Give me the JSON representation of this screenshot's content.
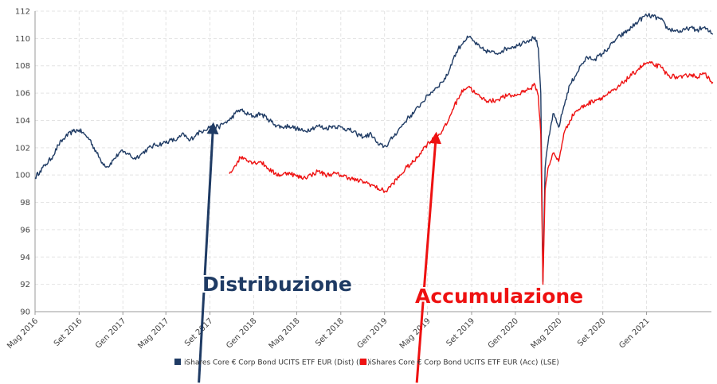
{
  "chart_data": {
    "type": "line",
    "ylim": [
      90,
      112
    ],
    "y_ticks": [
      90,
      92,
      94,
      96,
      98,
      100,
      102,
      104,
      106,
      108,
      110,
      112
    ],
    "x_ticks": [
      "Mag 2016",
      "Set 2016",
      "Gen 2017",
      "Mag 2017",
      "Set 2017",
      "Gen 2018",
      "Mag 2018",
      "Set 2018",
      "Gen 2019",
      "Mag 2019",
      "Set 2019",
      "Gen 2020",
      "Mag 2020",
      "Set 2020",
      "Gen 2021"
    ],
    "x_start": "2016-05",
    "x_end": "2021-07",
    "grid": true,
    "legend_position": "bottom",
    "series": [
      {
        "name": "iShares Core € Corp Bond UCITS ETF EUR (Dist) (MI)",
        "color": "#1f3b64",
        "points": [
          [
            "2016-05-01",
            99.8
          ],
          [
            "2016-05-15",
            100.3
          ],
          [
            "2016-06-01",
            100.8
          ],
          [
            "2016-06-20",
            101.4
          ],
          [
            "2016-07-05",
            102.2
          ],
          [
            "2016-07-25",
            102.8
          ],
          [
            "2016-08-15",
            103.2
          ],
          [
            "2016-09-01",
            103.3
          ],
          [
            "2016-09-15",
            103.0
          ],
          [
            "2016-10-01",
            102.6
          ],
          [
            "2016-10-20",
            101.6
          ],
          [
            "2016-11-05",
            100.9
          ],
          [
            "2016-11-20",
            100.6
          ],
          [
            "2016-12-05",
            101.1
          ],
          [
            "2016-12-25",
            101.7
          ],
          [
            "2017-01-15",
            101.6
          ],
          [
            "2017-02-01",
            101.2
          ],
          [
            "2017-02-20",
            101.5
          ],
          [
            "2017-03-10",
            101.9
          ],
          [
            "2017-04-01",
            102.2
          ],
          [
            "2017-04-20",
            102.3
          ],
          [
            "2017-05-10",
            102.5
          ],
          [
            "2017-06-01",
            102.6
          ],
          [
            "2017-06-20",
            103.0
          ],
          [
            "2017-07-05",
            102.5
          ],
          [
            "2017-07-25",
            103.0
          ],
          [
            "2017-08-15",
            103.3
          ],
          [
            "2017-09-05",
            103.6
          ],
          [
            "2017-09-25",
            103.5
          ],
          [
            "2017-10-10",
            103.8
          ],
          [
            "2017-10-25",
            104.0
          ],
          [
            "2017-11-10",
            104.5
          ],
          [
            "2017-11-25",
            104.8
          ],
          [
            "2017-12-10",
            104.5
          ],
          [
            "2018-01-01",
            104.3
          ],
          [
            "2018-01-20",
            104.5
          ],
          [
            "2018-02-10",
            104.1
          ],
          [
            "2018-03-01",
            103.7
          ],
          [
            "2018-03-20",
            103.5
          ],
          [
            "2018-04-10",
            103.6
          ],
          [
            "2018-05-01",
            103.4
          ],
          [
            "2018-05-20",
            103.2
          ],
          [
            "2018-06-10",
            103.4
          ],
          [
            "2018-07-01",
            103.6
          ],
          [
            "2018-07-20",
            103.4
          ],
          [
            "2018-08-10",
            103.6
          ],
          [
            "2018-09-01",
            103.5
          ],
          [
            "2018-09-25",
            103.3
          ],
          [
            "2018-10-15",
            103.0
          ],
          [
            "2018-11-05",
            102.8
          ],
          [
            "2018-11-25",
            103.0
          ],
          [
            "2018-12-15",
            102.2
          ],
          [
            "2019-01-05",
            102.1
          ],
          [
            "2019-01-25",
            102.8
          ],
          [
            "2019-02-15",
            103.5
          ],
          [
            "2019-03-05",
            104.1
          ],
          [
            "2019-03-25",
            104.6
          ],
          [
            "2019-04-15",
            105.3
          ],
          [
            "2019-05-05",
            105.9
          ],
          [
            "2019-05-25",
            106.4
          ],
          [
            "2019-06-10",
            106.8
          ],
          [
            "2019-06-25",
            107.3
          ],
          [
            "2019-07-10",
            108.4
          ],
          [
            "2019-07-25",
            109.2
          ],
          [
            "2019-08-10",
            109.8
          ],
          [
            "2019-08-25",
            110.1
          ],
          [
            "2019-09-10",
            109.7
          ],
          [
            "2019-09-25",
            109.3
          ],
          [
            "2019-10-10",
            109.1
          ],
          [
            "2019-10-25",
            109.0
          ],
          [
            "2019-11-10",
            108.9
          ],
          [
            "2019-11-25",
            109.1
          ],
          [
            "2019-12-10",
            109.3
          ],
          [
            "2019-12-25",
            109.4
          ],
          [
            "2020-01-10",
            109.5
          ],
          [
            "2020-01-25",
            109.8
          ],
          [
            "2020-02-10",
            109.9
          ],
          [
            "2020-02-25",
            110.1
          ],
          [
            "2020-03-05",
            109.3
          ],
          [
            "2020-03-12",
            106.0
          ],
          [
            "2020-03-18",
            92.2
          ],
          [
            "2020-03-24",
            100.5
          ],
          [
            "2020-04-01",
            102.3
          ],
          [
            "2020-04-15",
            104.5
          ],
          [
            "2020-05-01",
            103.5
          ],
          [
            "2020-05-15",
            105.0
          ],
          [
            "2020-06-01",
            106.6
          ],
          [
            "2020-06-15",
            107.2
          ],
          [
            "2020-07-01",
            108.0
          ],
          [
            "2020-07-20",
            108.6
          ],
          [
            "2020-08-10",
            108.5
          ],
          [
            "2020-09-01",
            108.9
          ],
          [
            "2020-09-20",
            109.4
          ],
          [
            "2020-10-10",
            110.0
          ],
          [
            "2020-11-01",
            110.4
          ],
          [
            "2020-11-20",
            110.8
          ],
          [
            "2020-12-10",
            111.3
          ],
          [
            "2021-01-01",
            111.7
          ],
          [
            "2021-01-20",
            111.6
          ],
          [
            "2021-02-10",
            111.4
          ],
          [
            "2021-03-01",
            110.7
          ],
          [
            "2021-03-20",
            110.6
          ],
          [
            "2021-04-10",
            110.5
          ],
          [
            "2021-05-01",
            110.8
          ],
          [
            "2021-05-20",
            110.6
          ],
          [
            "2021-06-10",
            110.8
          ],
          [
            "2021-06-25",
            110.5
          ],
          [
            "2021-07-05",
            110.3
          ]
        ]
      },
      {
        "name": "iShares Core € Corp Bond UCITS ETF EUR (Acc) (LSE)",
        "color": "#ee1111",
        "points": [
          [
            "2017-10-25",
            100.1
          ],
          [
            "2017-11-10",
            100.7
          ],
          [
            "2017-11-25",
            101.3
          ],
          [
            "2017-12-10",
            101.2
          ],
          [
            "2018-01-01",
            100.9
          ],
          [
            "2018-01-20",
            101.0
          ],
          [
            "2018-02-10",
            100.5
          ],
          [
            "2018-03-01",
            100.1
          ],
          [
            "2018-03-20",
            100.0
          ],
          [
            "2018-04-10",
            100.2
          ],
          [
            "2018-05-01",
            99.9
          ],
          [
            "2018-05-20",
            99.8
          ],
          [
            "2018-06-10",
            100.0
          ],
          [
            "2018-07-01",
            100.3
          ],
          [
            "2018-07-20",
            100.0
          ],
          [
            "2018-08-10",
            100.1
          ],
          [
            "2018-09-01",
            100.0
          ],
          [
            "2018-09-25",
            99.8
          ],
          [
            "2018-10-15",
            99.6
          ],
          [
            "2018-11-05",
            99.5
          ],
          [
            "2018-11-25",
            99.3
          ],
          [
            "2018-12-15",
            99.0
          ],
          [
            "2019-01-05",
            98.8
          ],
          [
            "2019-01-25",
            99.4
          ],
          [
            "2019-02-15",
            100.0
          ],
          [
            "2019-03-05",
            100.6
          ],
          [
            "2019-03-25",
            101.0
          ],
          [
            "2019-04-15",
            101.8
          ],
          [
            "2019-05-05",
            102.4
          ],
          [
            "2019-05-25",
            102.8
          ],
          [
            "2019-06-10",
            103.2
          ],
          [
            "2019-06-25",
            103.8
          ],
          [
            "2019-07-10",
            104.8
          ],
          [
            "2019-07-25",
            105.6
          ],
          [
            "2019-08-10",
            106.3
          ],
          [
            "2019-08-25",
            106.5
          ],
          [
            "2019-09-10",
            106.0
          ],
          [
            "2019-09-25",
            105.7
          ],
          [
            "2019-10-10",
            105.5
          ],
          [
            "2019-10-25",
            105.4
          ],
          [
            "2019-11-10",
            105.5
          ],
          [
            "2019-11-25",
            105.7
          ],
          [
            "2019-12-10",
            105.8
          ],
          [
            "2019-12-25",
            105.8
          ],
          [
            "2020-01-10",
            105.9
          ],
          [
            "2020-01-25",
            106.2
          ],
          [
            "2020-02-10",
            106.3
          ],
          [
            "2020-02-25",
            106.6
          ],
          [
            "2020-03-05",
            105.8
          ],
          [
            "2020-03-12",
            103.0
          ],
          [
            "2020-03-18",
            92.0
          ],
          [
            "2020-03-24",
            98.9
          ],
          [
            "2020-04-01",
            100.5
          ],
          [
            "2020-04-15",
            101.6
          ],
          [
            "2020-05-01",
            101.0
          ],
          [
            "2020-05-15",
            103.0
          ],
          [
            "2020-06-01",
            104.0
          ],
          [
            "2020-06-15",
            104.6
          ],
          [
            "2020-07-01",
            104.9
          ],
          [
            "2020-07-20",
            105.2
          ],
          [
            "2020-08-10",
            105.5
          ],
          [
            "2020-09-01",
            105.7
          ],
          [
            "2020-09-20",
            106.0
          ],
          [
            "2020-10-10",
            106.3
          ],
          [
            "2020-11-01",
            106.9
          ],
          [
            "2020-11-20",
            107.3
          ],
          [
            "2020-12-10",
            107.8
          ],
          [
            "2021-01-01",
            108.2
          ],
          [
            "2021-01-20",
            108.1
          ],
          [
            "2021-02-10",
            107.9
          ],
          [
            "2021-03-01",
            107.3
          ],
          [
            "2021-03-20",
            107.2
          ],
          [
            "2021-04-10",
            107.1
          ],
          [
            "2021-05-01",
            107.4
          ],
          [
            "2021-05-20",
            107.2
          ],
          [
            "2021-06-10",
            107.4
          ],
          [
            "2021-06-25",
            107.1
          ],
          [
            "2021-07-05",
            106.8
          ]
        ]
      }
    ],
    "annotations": [
      {
        "text": "Distribuzione",
        "color": "#1f3b64",
        "arrow_from": [
          "2017-08-01",
          84.8
        ],
        "arrow_to": [
          "2017-09-10",
          103.7
        ]
      },
      {
        "text": "Accumulazione",
        "color": "#ee1111",
        "arrow_from": [
          "2019-04-01",
          84.8
        ],
        "arrow_to": [
          "2019-05-25",
          103.0
        ]
      }
    ]
  }
}
